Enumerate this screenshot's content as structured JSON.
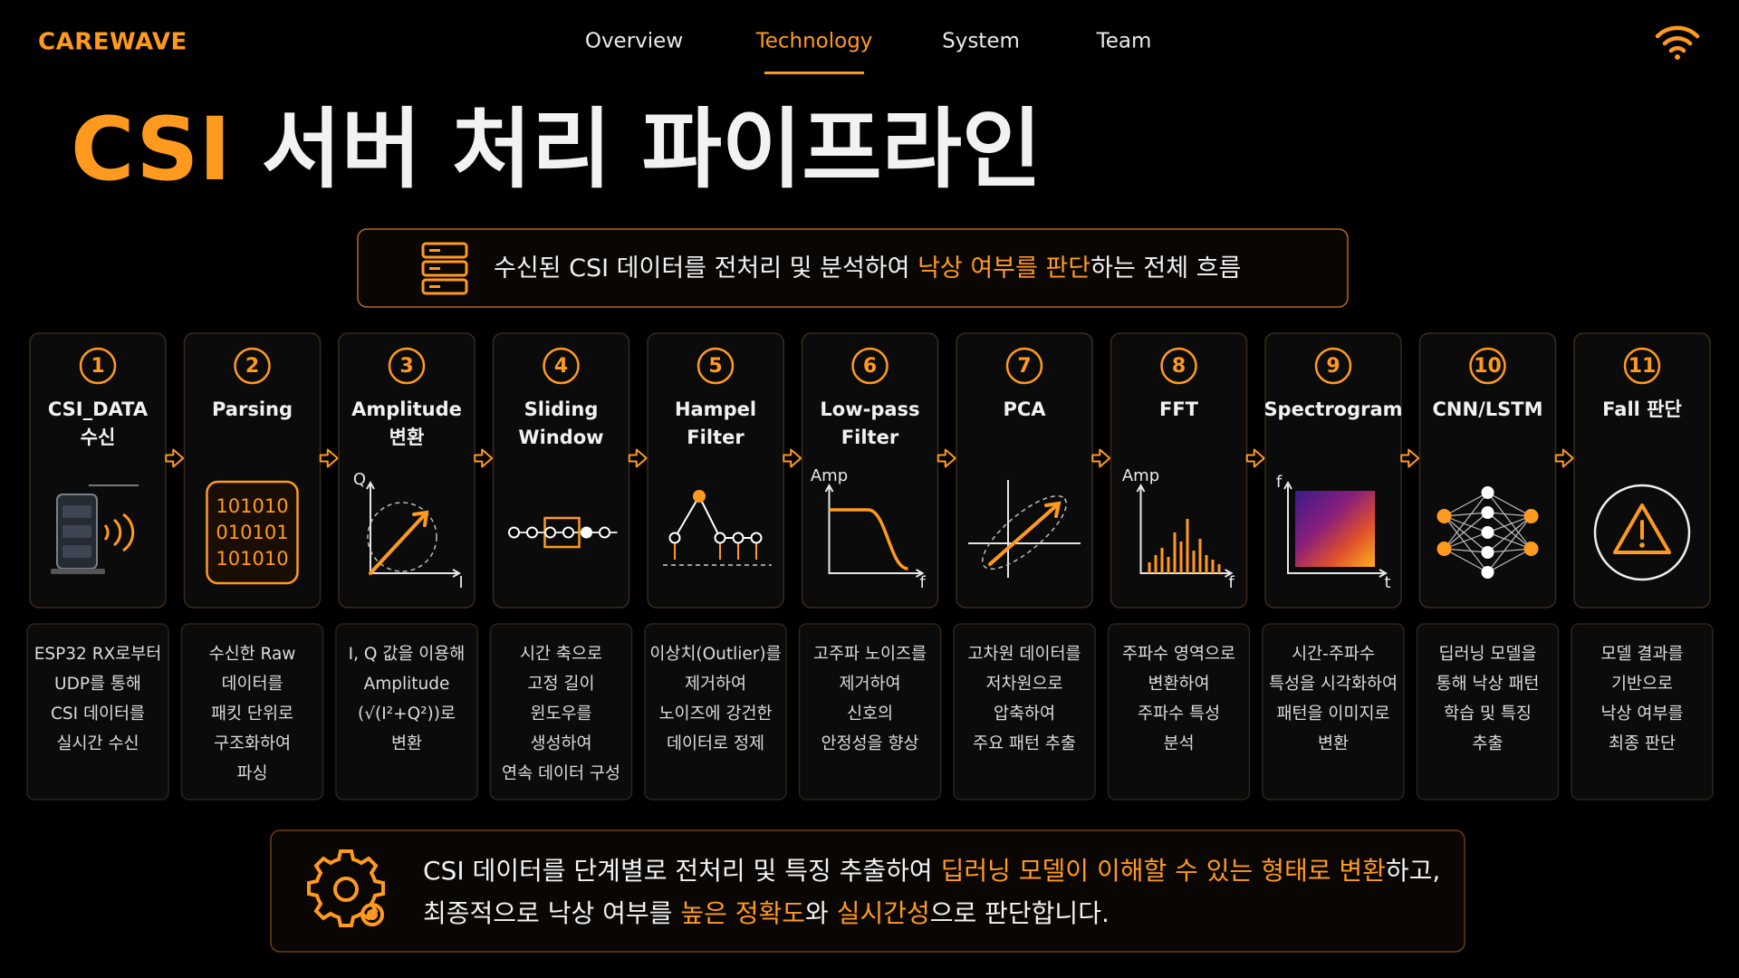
{
  "brand": "CAREWAVE",
  "nav": [
    {
      "label": "Overview"
    },
    {
      "label": "Technology",
      "active": true
    },
    {
      "label": "System"
    },
    {
      "label": "Team"
    }
  ],
  "title": [
    {
      "text": "CSI",
      "highlight": true
    },
    {
      "text": " 서버 처리 파이프라인"
    }
  ],
  "subtitle": [
    {
      "text": "수신된 CSI 데이터를 전처리 및 분석하여 "
    },
    {
      "text": "낙상 여부를 판단",
      "highlight": true
    },
    {
      "text": "하는 전체 흐름"
    }
  ],
  "steps": [
    {
      "number": "1",
      "title": [
        "CSI_DATA",
        "수신"
      ],
      "description": [
        "ESP32 RX로부터",
        "UDP를 통해",
        "CSI 데이터를",
        "실시간 수신"
      ]
    },
    {
      "number": "2",
      "title": [
        "Parsing"
      ],
      "icon_labels": [
        "101010",
        "010101",
        "101010"
      ],
      "description": [
        "수신한 Raw",
        "데이터를",
        "패킷 단위로",
        "구조화하여",
        "파싱"
      ]
    },
    {
      "number": "3",
      "title": [
        "Amplitude",
        "변환"
      ],
      "icon_labels": [
        "Q",
        "I"
      ],
      "description": [
        "I, Q 값을 이용해",
        "Amplitude",
        "(√(I²+Q²))로",
        "변환"
      ]
    },
    {
      "number": "4",
      "title": [
        "Sliding",
        "Window"
      ],
      "description": [
        "시간 축으로",
        "고정 길이",
        "윈도우를",
        "생성하여",
        "연속 데이터 구성"
      ]
    },
    {
      "number": "5",
      "title": [
        "Hampel",
        "Filter"
      ],
      "description": [
        "이상치(Outlier)를",
        "제거하여",
        "노이즈에 강건한",
        "데이터로 정제"
      ]
    },
    {
      "number": "6",
      "title": [
        "Low-pass",
        "Filter"
      ],
      "icon_labels": [
        "Amp",
        "f"
      ],
      "description": [
        "고주파 노이즈를",
        "제거하여",
        "신호의",
        "안정성을 향상"
      ]
    },
    {
      "number": "7",
      "title": [
        "PCA"
      ],
      "description": [
        "고차원 데이터를",
        "저차원으로",
        "압축하여",
        "주요 패턴 추출"
      ]
    },
    {
      "number": "8",
      "title": [
        "FFT"
      ],
      "icon_labels": [
        "Amp",
        "f"
      ],
      "description": [
        "주파수 영역으로",
        "변환하여",
        "주파수 특성",
        "분석"
      ]
    },
    {
      "number": "9",
      "title": [
        "Spectrogram"
      ],
      "icon_labels": [
        "f",
        "t"
      ],
      "description": [
        "시간-주파수",
        "특성을 시각화하여",
        "패턴을 이미지로",
        "변환"
      ]
    },
    {
      "number": "10",
      "title": [
        "CNN/LSTM"
      ],
      "description": [
        "딥러닝 모델을",
        "통해 낙상 패턴",
        "학습 및 특징",
        "추출"
      ]
    },
    {
      "number": "11",
      "title": [
        "Fall 판단"
      ],
      "description": [
        "모델 결과를",
        "기반으로",
        "낙상 여부를",
        "최종 판단"
      ]
    }
  ],
  "footer": [
    [
      {
        "text": "CSI 데이터를 단계별로 전처리 및 특징 추출하여 "
      },
      {
        "text": "딥러닝 모델이 이해할 수 있는 형태로 변환",
        "highlight": true
      },
      {
        "text": "하고,"
      }
    ],
    [
      {
        "text": "최종적으로 낙상 여부를 "
      },
      {
        "text": "높은 정확도",
        "highlight": true
      },
      {
        "text": "와 "
      },
      {
        "text": "실시간성",
        "highlight": true
      },
      {
        "text": "으로 판단합니다."
      }
    ]
  ]
}
